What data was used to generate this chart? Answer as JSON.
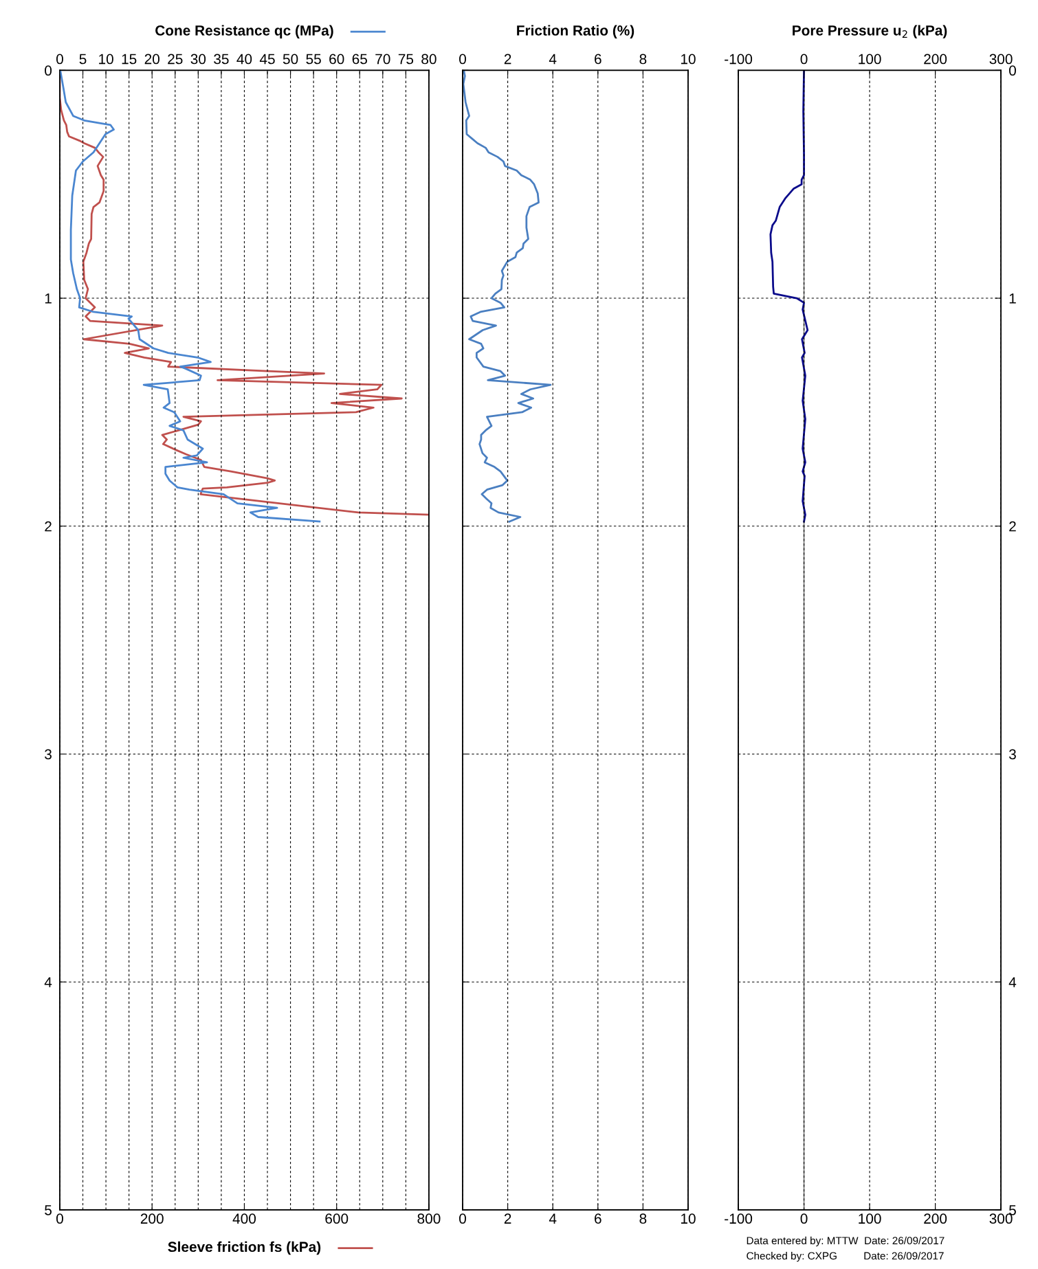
{
  "chart_data": [
    {
      "type": "line",
      "x2label": "Cone Resistance qc (MPa)",
      "xlabel": "Sleeve friction fs (kPa)",
      "xlim": [
        0,
        800
      ],
      "xticks": [
        0,
        200,
        400,
        600,
        800
      ],
      "x2lim": [
        0,
        80
      ],
      "x2ticks": [
        0,
        5,
        10,
        15,
        20,
        25,
        30,
        35,
        40,
        45,
        50,
        55,
        60,
        65,
        70,
        75,
        80
      ],
      "ylim": [
        5,
        0
      ],
      "yticks": [
        0,
        1,
        2,
        3,
        4,
        5
      ],
      "grid": true,
      "line_style": "solid",
      "marker": "none",
      "series": [
        {
          "axis": "x2",
          "color": "#4a86d0",
          "x": [
            0.1,
            0.8,
            1.3,
            2.9,
            5.3,
            11.0,
            11.7,
            9.9,
            7.3,
            5.0,
            3.5,
            2.7,
            2.4,
            2.4,
            2.9,
            3.7,
            4.4,
            4.2,
            7.3,
            15.6,
            14.9,
            17.0,
            17.3,
            20.3,
            23.5,
            29.9,
            32.7,
            26.1,
            27.4,
            30.6,
            30.3,
            18.2,
            23.4,
            23.8,
            22.5,
            24.8,
            26.1,
            23.8,
            26.8,
            27.7,
            31.0,
            29.7,
            26.8,
            31.9,
            22.9,
            22.9,
            23.8,
            25.5,
            28.1,
            35.5,
            38.5,
            47.1,
            41.3,
            43.0,
            56.3
          ],
          "values": [
            0,
            0.08,
            0.14,
            0.2,
            0.22,
            0.24,
            0.26,
            0.28,
            0.36,
            0.4,
            0.44,
            0.55,
            0.7,
            0.83,
            0.89,
            0.96,
            1.0,
            1.04,
            1.06,
            1.08,
            1.09,
            1.14,
            1.18,
            1.22,
            1.24,
            1.26,
            1.28,
            1.3,
            1.31,
            1.34,
            1.36,
            1.38,
            1.4,
            1.46,
            1.48,
            1.5,
            1.54,
            1.56,
            1.58,
            1.62,
            1.66,
            1.69,
            1.7,
            1.72,
            1.74,
            1.77,
            1.8,
            1.83,
            1.84,
            1.86,
            1.9,
            1.92,
            1.94,
            1.96,
            1.98
          ]
        },
        {
          "color": "#c0504d",
          "x": [
            0,
            0,
            3,
            9,
            14,
            16,
            20,
            44,
            53,
            76,
            84,
            94,
            82,
            89,
            95,
            95,
            86,
            73,
            69,
            68,
            63,
            58,
            51,
            53,
            61,
            56,
            76,
            56,
            66,
            222,
            52,
            151,
            193,
            141,
            183,
            241,
            235,
            450,
            573,
            342,
            697,
            688,
            607,
            741,
            589,
            680,
            642,
            268,
            306,
            300,
            222,
            232,
            224,
            251,
            274,
            306,
            313,
            371,
            450,
            466,
            450,
            362,
            310,
            305,
            647,
            800
          ],
          "values": [
            0,
            0.12,
            0.175,
            0.22,
            0.24,
            0.27,
            0.29,
            0.31,
            0.32,
            0.34,
            0.36,
            0.38,
            0.42,
            0.46,
            0.48,
            0.53,
            0.58,
            0.6,
            0.63,
            0.74,
            0.76,
            0.8,
            0.84,
            0.92,
            0.96,
            1.0,
            1.04,
            1.08,
            1.1,
            1.12,
            1.18,
            1.2,
            1.22,
            1.24,
            1.26,
            1.28,
            1.3,
            1.32,
            1.33,
            1.36,
            1.38,
            1.4,
            1.42,
            1.44,
            1.46,
            1.48,
            1.5,
            1.52,
            1.54,
            1.555,
            1.6,
            1.62,
            1.64,
            1.665,
            1.685,
            1.71,
            1.74,
            1.76,
            1.79,
            1.8,
            1.81,
            1.83,
            1.835,
            1.86,
            1.94,
            1.95
          ]
        }
      ]
    },
    {
      "type": "line",
      "x2label": "Friction Ratio (%)",
      "xlim": [
        0,
        10
      ],
      "xticks": [
        0,
        2,
        4,
        6,
        8,
        10
      ],
      "x2lim": [
        0,
        10
      ],
      "x2ticks": [
        0,
        2,
        4,
        6,
        8,
        10
      ],
      "ylim": [
        5,
        0
      ],
      "yticks": [
        0,
        1,
        2,
        3,
        4,
        5
      ],
      "tick_labels": "x",
      "grid": true,
      "line_style": "solid",
      "marker": "none",
      "series": [
        {
          "color": "#4a7fc1",
          "x": [
            0.05,
            0.1,
            0.03,
            0.13,
            0.29,
            0.16,
            0.18,
            0.42,
            0.66,
            1.02,
            1.15,
            1.55,
            1.81,
            1.88,
            2.4,
            2.6,
            3.0,
            3.17,
            3.33,
            3.37,
            2.97,
            2.83,
            2.83,
            2.91,
            2.7,
            2.67,
            2.4,
            2.34,
            1.98,
            1.74,
            1.81,
            1.74,
            1.72,
            1.45,
            1.28,
            1.68,
            1.85,
            0.79,
            0.36,
            0.45,
            1.48,
            0.89,
            0.29,
            0.82,
            0.92,
            0.62,
            0.62,
            0.92,
            1.68,
            1.88,
            1.12,
            3.9,
            3.0,
            2.6,
            3.13,
            2.47,
            3.04,
            2.64,
            1.08,
            1.28,
            1.02,
            0.82,
            0.82,
            0.75,
            0.88,
            1.08,
            0.98,
            1.41,
            1.68,
            1.98,
            1.77,
            1.08,
            0.85,
            1.06,
            1.28,
            1.24,
            1.59,
            2.56,
            2.07
          ],
          "values": [
            0,
            0.025,
            0.06,
            0.14,
            0.2,
            0.22,
            0.28,
            0.3,
            0.32,
            0.34,
            0.36,
            0.38,
            0.4,
            0.42,
            0.44,
            0.46,
            0.48,
            0.5,
            0.54,
            0.58,
            0.6,
            0.64,
            0.69,
            0.74,
            0.76,
            0.78,
            0.8,
            0.82,
            0.84,
            0.88,
            0.9,
            0.92,
            0.96,
            0.98,
            1.0,
            1.02,
            1.04,
            1.06,
            1.08,
            1.1,
            1.12,
            1.14,
            1.18,
            1.2,
            1.22,
            1.24,
            1.26,
            1.3,
            1.32,
            1.34,
            1.36,
            1.38,
            1.4,
            1.42,
            1.44,
            1.46,
            1.48,
            1.5,
            1.52,
            1.56,
            1.58,
            1.6,
            1.62,
            1.64,
            1.68,
            1.7,
            1.72,
            1.74,
            1.76,
            1.8,
            1.82,
            1.84,
            1.86,
            1.88,
            1.9,
            1.92,
            1.94,
            1.96,
            1.98
          ]
        }
      ]
    },
    {
      "type": "line",
      "x2label": "Pore Pressure u$_{2}$ (kPa)",
      "xlim": [
        -100,
        300
      ],
      "xticks": [
        -100,
        0,
        100,
        200,
        300
      ],
      "x2lim": [
        -100,
        300
      ],
      "x2ticks": [
        -100,
        0,
        100,
        200,
        300
      ],
      "y2lim": [
        5,
        0
      ],
      "y2ticks": [
        0,
        1,
        2,
        3,
        4,
        5
      ],
      "grid": true,
      "line_style": "solid",
      "marker": "none",
      "ref_lines": [
        {
          "axis": "x",
          "value": 0,
          "color": "#808080",
          "line_style": "solid"
        }
      ],
      "annotations": [
        "Data entered by: MTTW  Date: 26/09/2017",
        "Checked by: CXPG         Date: 26/09/2017"
      ],
      "series": [
        {
          "axis": "y2",
          "color": "#0b0b8b",
          "x": [
            0,
            -1,
            0,
            0,
            -3.6,
            -3.6,
            -16,
            -28,
            -37,
            -43,
            -48,
            -51,
            -50,
            -48,
            -47,
            -46,
            -11,
            0,
            -2,
            5.5,
            -3,
            1,
            -3,
            2,
            -2,
            2,
            -2,
            2,
            -2,
            1,
            -2,
            2,
            0
          ],
          "values": [
            0,
            0.18,
            0.37,
            0.46,
            0.48,
            0.5,
            0.52,
            0.56,
            0.6,
            0.66,
            0.68,
            0.72,
            0.8,
            0.84,
            0.95,
            0.98,
            1.0,
            1.02,
            1.05,
            1.14,
            1.18,
            1.24,
            1.26,
            1.34,
            1.45,
            1.53,
            1.66,
            1.72,
            1.76,
            1.78,
            1.89,
            1.95,
            1.98
          ]
        }
      ]
    }
  ]
}
